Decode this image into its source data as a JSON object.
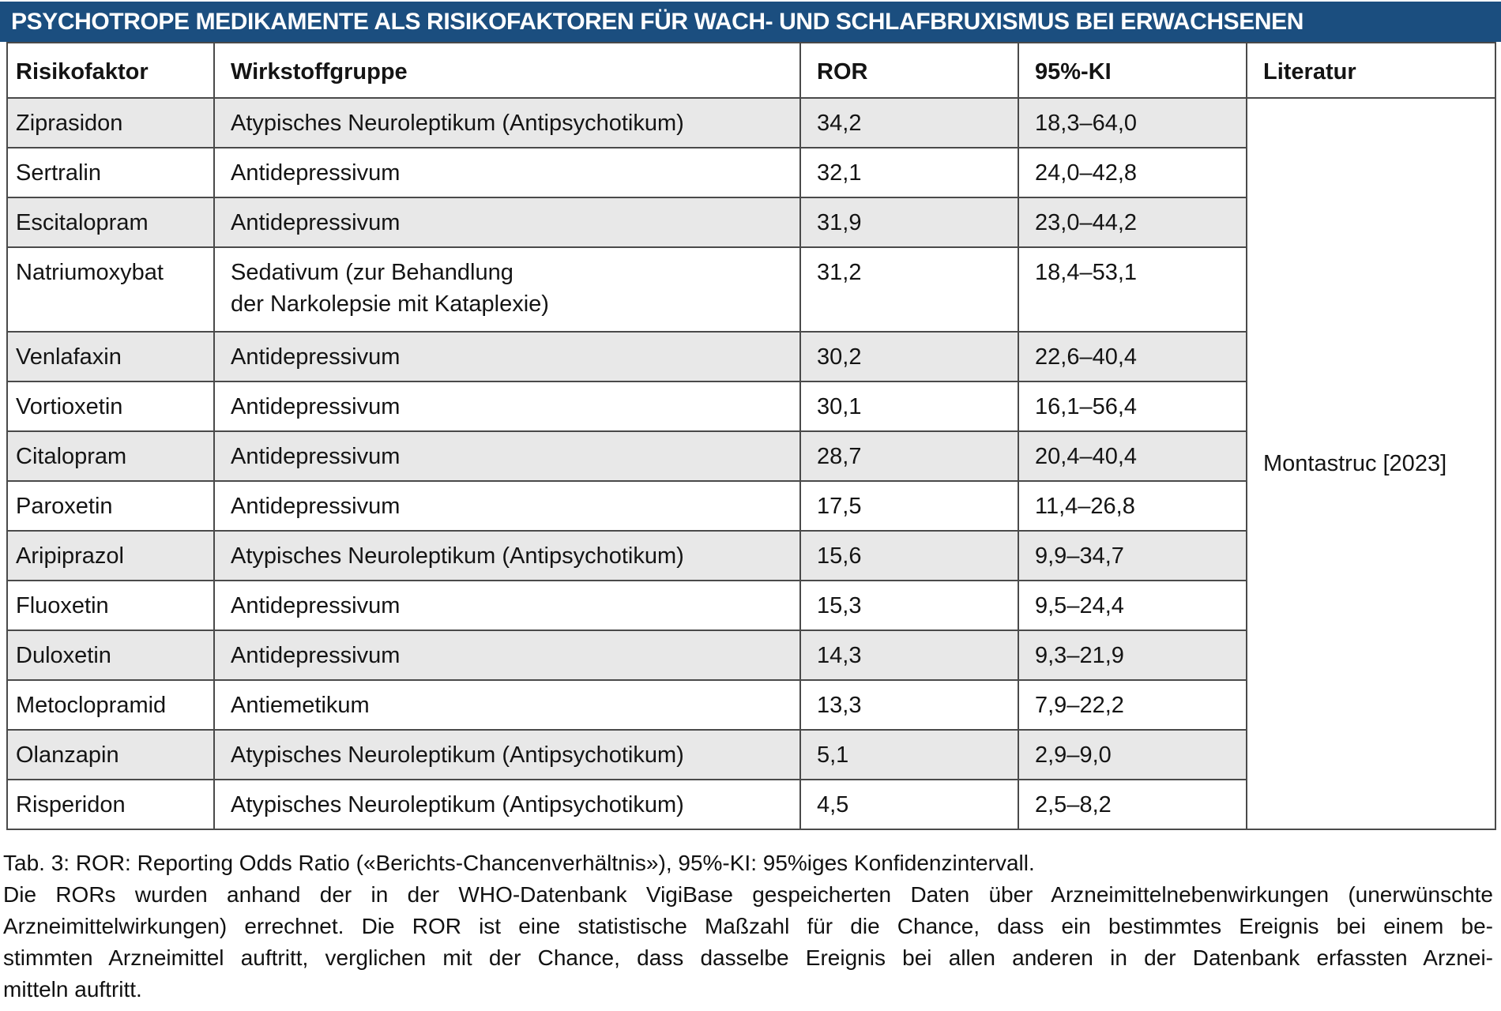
{
  "title": "PSYCHOTROPE MEDIKAMENTE ALS RISIKOFAKTOREN FÜR WACH- UND SCHLAFBRUXISMUS BEI ERWACHSENEN",
  "colors": {
    "title_bar_background": "#1b4e7f",
    "title_text": "#ffffff",
    "row_shade": "#e8e8e8",
    "row_plain": "#ffffff",
    "table_border": "#4a4a4a",
    "body_text": "#141414"
  },
  "table": {
    "headers": [
      "Risikofaktor",
      "Wirkstoffgruppe",
      "ROR",
      "95%-KI",
      "Literatur"
    ],
    "literatur": "Montastruc [2023]",
    "rows": [
      {
        "risikofaktor": "Ziprasidon",
        "wirkstoffgruppe": "Atypisches Neuroleptikum (Antipsychotikum)",
        "ror": "34,2",
        "ki": "18,3–64,0"
      },
      {
        "risikofaktor": "Sertralin",
        "wirkstoffgruppe": "Antidepressivum",
        "ror": "32,1",
        "ki": "24,0–42,8"
      },
      {
        "risikofaktor": "Escitalopram",
        "wirkstoffgruppe": "Antidepressivum",
        "ror": "31,9",
        "ki": "23,0–44,2"
      },
      {
        "risikofaktor": "Natriumoxybat",
        "wirkstoffgruppe": "Sedativum (zur Behandlung\nder Narkolepsie mit Kataplexie)",
        "ror": "31,2",
        "ki": "18,4–53,1"
      },
      {
        "risikofaktor": "Venlafaxin",
        "wirkstoffgruppe": "Antidepressivum",
        "ror": "30,2",
        "ki": "22,6–40,4"
      },
      {
        "risikofaktor": "Vortioxetin",
        "wirkstoffgruppe": "Antidepressivum",
        "ror": "30,1",
        "ki": "16,1–56,4"
      },
      {
        "risikofaktor": "Citalopram",
        "wirkstoffgruppe": "Antidepressivum",
        "ror": "28,7",
        "ki": "20,4–40,4"
      },
      {
        "risikofaktor": "Paroxetin",
        "wirkstoffgruppe": "Antidepressivum",
        "ror": "17,5",
        "ki": "11,4–26,8"
      },
      {
        "risikofaktor": "Aripiprazol",
        "wirkstoffgruppe": "Atypisches Neuroleptikum (Antipsychotikum)",
        "ror": "15,6",
        "ki": "9,9–34,7"
      },
      {
        "risikofaktor": "Fluoxetin",
        "wirkstoffgruppe": "Antidepressivum",
        "ror": "15,3",
        "ki": "9,5–24,4"
      },
      {
        "risikofaktor": "Duloxetin",
        "wirkstoffgruppe": "Antidepressivum",
        "ror": "14,3",
        "ki": "9,3–21,9"
      },
      {
        "risikofaktor": "Metoclopramid",
        "wirkstoffgruppe": "Antiemetikum",
        "ror": "13,3",
        "ki": "7,9–22,2"
      },
      {
        "risikofaktor": "Olanzapin",
        "wirkstoffgruppe": "Atypisches Neuroleptikum (Antipsychotikum)",
        "ror": "5,1",
        "ki": "2,9–9,0"
      },
      {
        "risikofaktor": "Risperidon",
        "wirkstoffgruppe": "Atypisches Neuroleptikum (Antipsychotikum)",
        "ror": "4,5",
        "ki": "2,5–8,2"
      }
    ]
  },
  "footer": {
    "lines": [
      "Tab. 3: ROR: Reporting Odds Ratio («Berichts-Chancenverhältnis»), 95%-KI: 95%iges Konfidenzintervall.",
      "Die RORs wurden anhand der in der WHO-Datenbank VigiBase gespeicherten Daten über Arzneimittelnebenwirkungen (unerwünschte",
      "Arzneimittelwirkungen) errechnet. Die ROR ist eine statistische Maßzahl für die Chance, dass ein bestimmtes Ereignis bei einem be-",
      "stimmten Arzneimittel auftritt, verglichen mit der Chance, dass dasselbe Ereignis bei allen anderen in der Datenbank erfassten Arznei-",
      "mitteln auftritt."
    ]
  }
}
